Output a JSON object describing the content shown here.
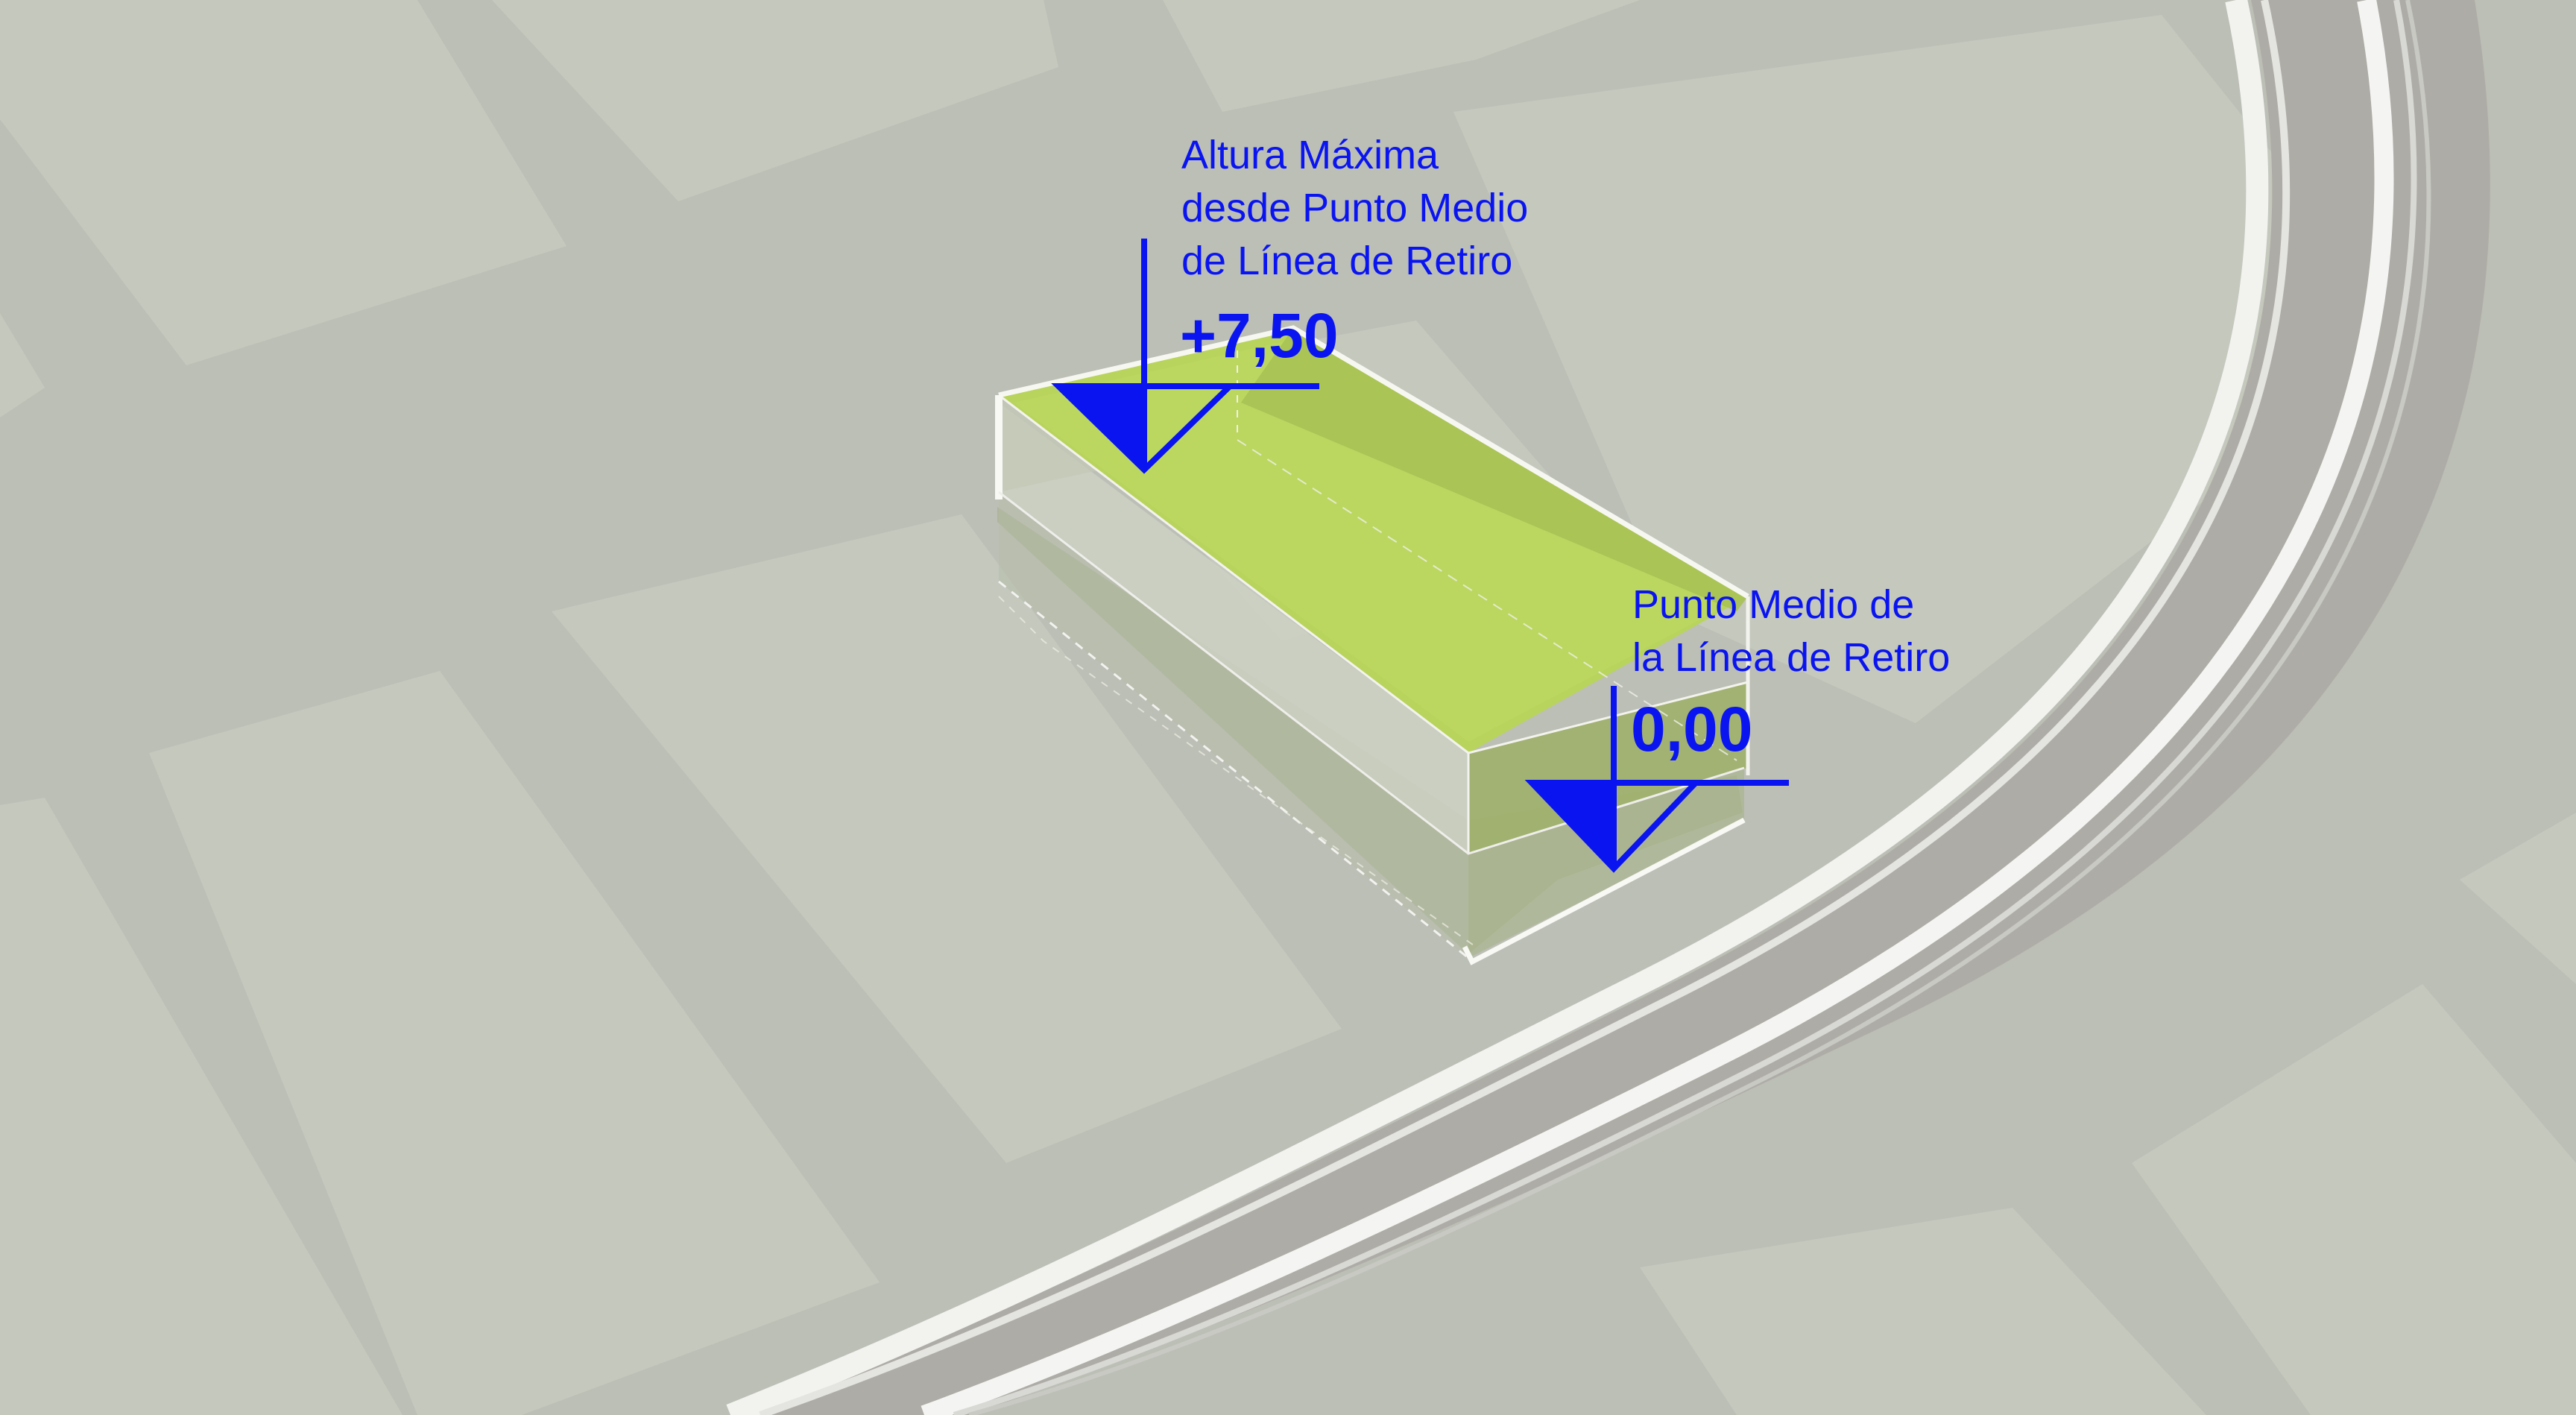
{
  "diagram": {
    "upper_marker": {
      "label_lines": [
        "Altura Máxima",
        "desde Punto Medio",
        "de Línea de Retiro"
      ],
      "value": "+7,50"
    },
    "lower_marker": {
      "label_lines": [
        "Punto Medio de",
        "la Línea de Retiro"
      ],
      "value": "0,00"
    }
  },
  "colors": {
    "background": "#bcbfb6",
    "block_light": "#c6cabe",
    "street_dark": "#b0b2aa",
    "curved_road": "#aeaca6",
    "volume_top": "#b8d45c",
    "volume_side": "#9aae6a",
    "annotation_blue": "#0a14f0"
  }
}
